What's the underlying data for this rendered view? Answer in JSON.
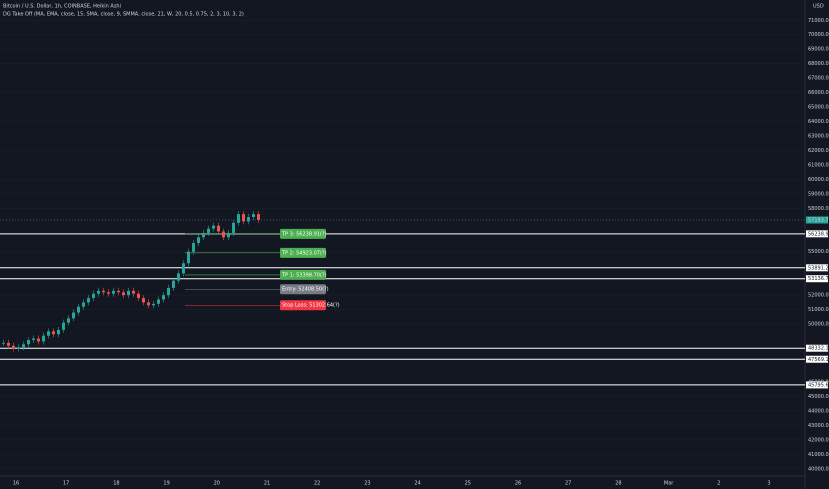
{
  "header": {
    "symbol": "Bitcoin / U.S. Dollar, 1h, COINBASE, Heikin Ashi",
    "indicator": "DG Take Off (MA, EMA, close, 15, SMA, close, 9, SMMA, close, 21, W, 20, 0.5, 0.75, 2, 3, 10, 3, 2)",
    "currency": "USD"
  },
  "chart_data": {
    "type": "candlestick",
    "ylim": [
      39500,
      72400
    ],
    "yticks": [
      {
        "value": 71000,
        "label": "71000.00"
      },
      {
        "value": 70000,
        "label": "70000.00"
      },
      {
        "value": 69000,
        "label": "69000.00"
      },
      {
        "value": 68000,
        "label": "68000.00"
      },
      {
        "value": 67000,
        "label": "67000.00"
      },
      {
        "value": 66000,
        "label": "66000.00"
      },
      {
        "value": 65000,
        "label": "65000.00"
      },
      {
        "value": 64000,
        "label": "64000.00"
      },
      {
        "value": 63000,
        "label": "63000.00"
      },
      {
        "value": 62000,
        "label": "62000.00"
      },
      {
        "value": 61000,
        "label": "61000.00"
      },
      {
        "value": 60000,
        "label": "60000.00"
      },
      {
        "value": 59000,
        "label": "59000.00"
      },
      {
        "value": 58000,
        "label": "58000.00"
      },
      {
        "value": 55000,
        "label": "55000.00"
      },
      {
        "value": 52000,
        "label": "52000.00"
      },
      {
        "value": 51000,
        "label": "51000.00"
      },
      {
        "value": 50000,
        "label": "50000.00"
      },
      {
        "value": 46000,
        "label": "46000.00"
      },
      {
        "value": 45000,
        "label": "45000.00"
      },
      {
        "value": 44000,
        "label": "44000.00"
      },
      {
        "value": 43000,
        "label": "43000.00"
      },
      {
        "value": 42000,
        "label": "42000.00"
      },
      {
        "value": 41000,
        "label": "41000.00"
      },
      {
        "value": 40000,
        "label": "40000.00"
      }
    ],
    "categories": [
      "16",
      "17",
      "18",
      "19",
      "20",
      "21",
      "22",
      "23",
      "24",
      "25",
      "26",
      "27",
      "28",
      "Mar",
      "2",
      "3"
    ],
    "closes": [
      48700,
      48500,
      48300,
      48400,
      48600,
      48900,
      49000,
      48800,
      49200,
      49500,
      49300,
      49600,
      50100,
      50400,
      50800,
      51200,
      51500,
      51800,
      52100,
      52300,
      52200,
      52100,
      52300,
      52200,
      52000,
      52300,
      52100,
      51800,
      51500,
      51300,
      51400,
      51700,
      52000,
      52500,
      53000,
      53500,
      54200,
      55000,
      55600,
      56000,
      56300,
      56600,
      56800,
      56400,
      56000,
      56300,
      57000,
      57600,
      57100,
      57400,
      57600,
      57200
    ],
    "levels": [
      {
        "value": 56238.91,
        "label": "56238.91"
      },
      {
        "value": 53891.25,
        "label": "53891.25"
      },
      {
        "value": 53136.77,
        "label": "53136.77"
      },
      {
        "value": 48332.18,
        "label": "48332.18"
      },
      {
        "value": 47569.15,
        "label": "47569.15"
      },
      {
        "value": 45795.61,
        "label": "45795.61"
      }
    ],
    "last_price": {
      "value": 57193.7,
      "label": "57193.70"
    },
    "signals": [
      {
        "value": 56238.91,
        "label": "TP 3: 56238.91(?)",
        "color": "#4caf50"
      },
      {
        "value": 54923.07,
        "label": "TP 2: 54923.07(?)",
        "color": "#4caf50"
      },
      {
        "value": 53398.7,
        "label": "TP 1: 53398.70(?)",
        "color": "#4caf50"
      },
      {
        "value": 52408.5,
        "label": "Entry: 52408.50(?)",
        "color": "#787b86"
      },
      {
        "value": 51302.64,
        "label": "Stop Loss: 51302.64(?)",
        "color": "#f23645"
      }
    ]
  }
}
